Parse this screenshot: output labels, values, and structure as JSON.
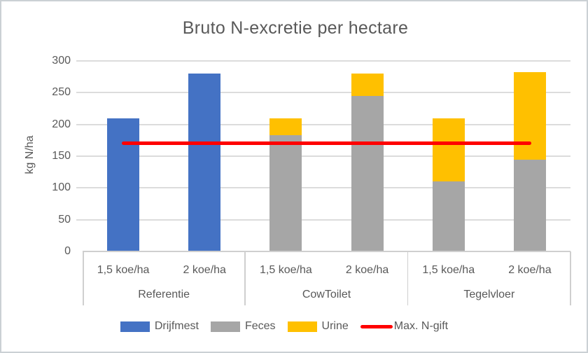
{
  "window": {
    "background_color": "#FFFFFF",
    "border_color": "#CBD0D4"
  },
  "chart_data": {
    "type": "bar",
    "stacked": true,
    "title": "Bruto N-excretie per hectare",
    "xlabel": "",
    "ylabel": "kg N/ha",
    "ylim": [
      0,
      300
    ],
    "ytick_step": 50,
    "ytick_labels": [
      "0",
      "50",
      "100",
      "150",
      "200",
      "250",
      "300"
    ],
    "grid": true,
    "legend_position": "bottom",
    "group_labels": [
      "Referentie",
      "CowToilet",
      "Tegelvloer"
    ],
    "category_labels": [
      "1,5 koe/ha",
      "2 koe/ha",
      "1,5 koe/ha",
      "2 koe/ha",
      "1,5 koe/ha",
      "2 koe/ha"
    ],
    "bar_series": [
      {
        "name": "Drijfmest",
        "color": "#4472C4",
        "values": [
          210,
          280,
          0,
          0,
          0,
          0
        ]
      },
      {
        "name": "Feces",
        "color": "#A6A6A6",
        "values": [
          0,
          0,
          183,
          245,
          110,
          145
        ]
      },
      {
        "name": "Urine",
        "color": "#FFC000",
        "values": [
          0,
          0,
          27,
          35,
          100,
          137
        ]
      }
    ],
    "line_series": {
      "name": "Max. N-gift",
      "color": "#FF0000",
      "value": 170,
      "spans_categories": [
        0,
        5
      ]
    },
    "bar_totals": [
      210,
      280,
      210,
      280,
      210,
      282
    ]
  },
  "styles": {
    "text_color": "#595959",
    "gridline_color": "#DCDCDC",
    "axis_line_color": "#CFCFCF"
  }
}
